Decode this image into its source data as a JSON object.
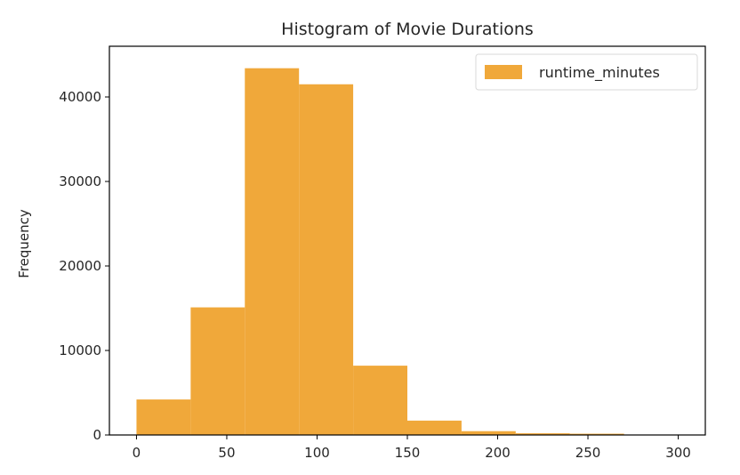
{
  "chart_data": {
    "type": "histogram",
    "title": "Histogram of Movie Durations",
    "xlabel": "",
    "ylabel": "Frequency",
    "xlim": [
      -15,
      315
    ],
    "ylim": [
      0,
      46000
    ],
    "xticks": [
      0,
      50,
      100,
      150,
      200,
      250,
      300
    ],
    "yticks": [
      0,
      10000,
      20000,
      30000,
      40000
    ],
    "bins": [
      {
        "start": 0,
        "end": 30,
        "value": 4200
      },
      {
        "start": 30,
        "end": 60,
        "value": 15100
      },
      {
        "start": 60,
        "end": 90,
        "value": 43400
      },
      {
        "start": 90,
        "end": 120,
        "value": 41500
      },
      {
        "start": 120,
        "end": 150,
        "value": 8200
      },
      {
        "start": 150,
        "end": 180,
        "value": 1700
      },
      {
        "start": 180,
        "end": 210,
        "value": 450
      },
      {
        "start": 210,
        "end": 240,
        "value": 200
      },
      {
        "start": 240,
        "end": 270,
        "value": 150
      },
      {
        "start": 270,
        "end": 300,
        "value": 50
      }
    ],
    "series_name": "runtime_minutes",
    "color": "#f0a83a",
    "legend_position": "top-right",
    "grid": false
  }
}
